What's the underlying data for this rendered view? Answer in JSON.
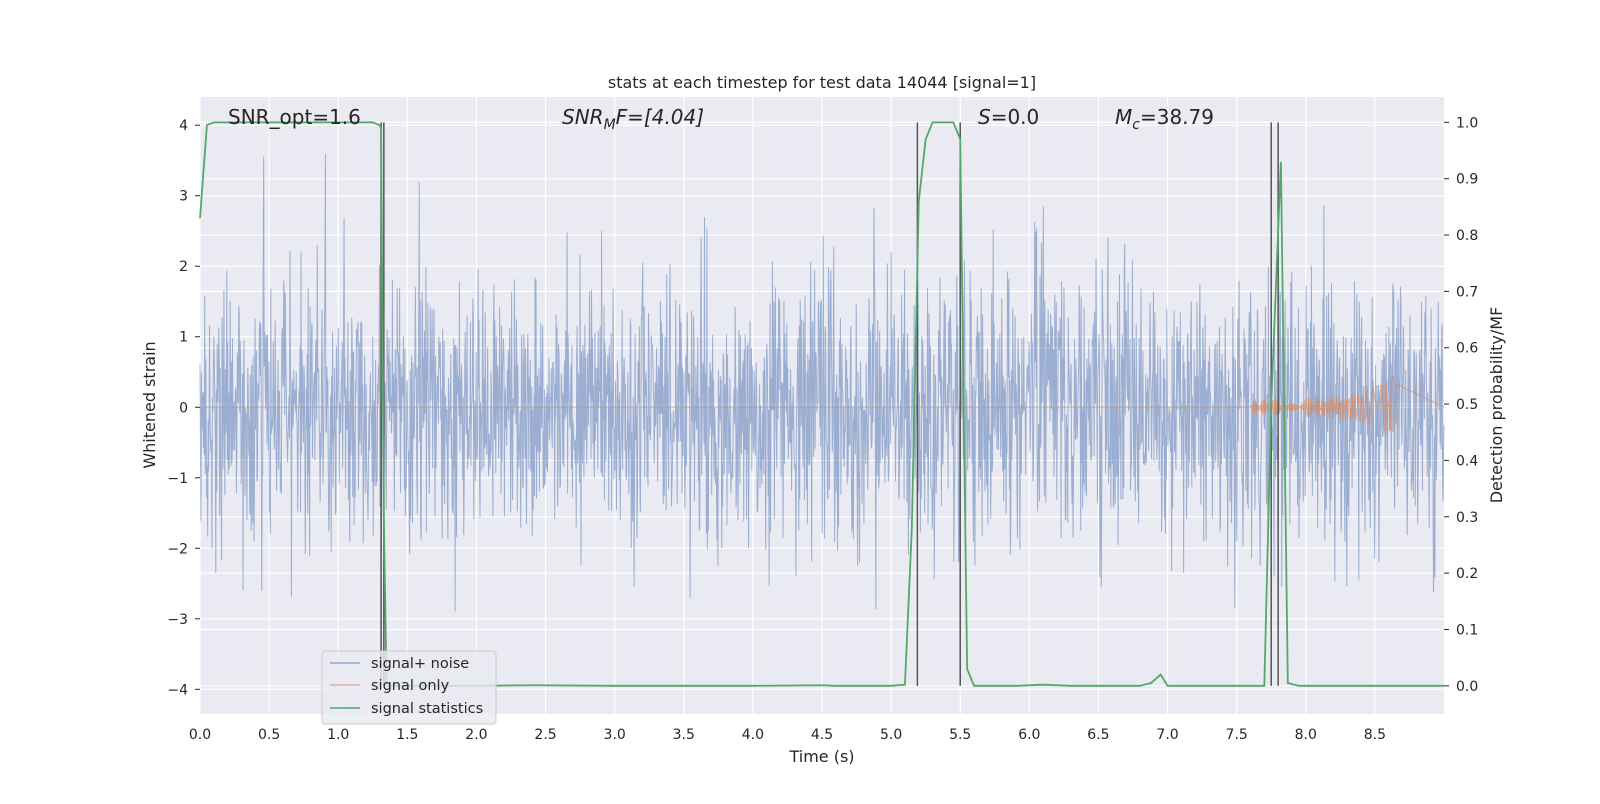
{
  "chart_data": {
    "type": "line",
    "title": "stats at each timestep for test data 14044 [signal=1]",
    "xlabel": "Time (s)",
    "ylabel": "Whitened strain",
    "ylabel_right": "Detection probability/MF",
    "xlim": [
      0.0,
      9.0
    ],
    "ylim": [
      -4.35,
      4.4
    ],
    "ylim_right": [
      -0.05,
      1.045
    ],
    "x_ticks": [
      "0.0",
      "0.5",
      "1.0",
      "1.5",
      "2.0",
      "2.5",
      "3.0",
      "3.5",
      "4.0",
      "4.5",
      "5.0",
      "5.5",
      "6.0",
      "6.5",
      "7.0",
      "7.5",
      "8.0",
      "8.5"
    ],
    "y_ticks_left": [
      "−4",
      "−3",
      "−2",
      "−1",
      "0",
      "1",
      "2",
      "3",
      "4"
    ],
    "y_ticks_right": [
      "0.0",
      "0.1",
      "0.2",
      "0.3",
      "0.4",
      "0.5",
      "0.6",
      "0.7",
      "0.8",
      "0.9",
      "1.0"
    ],
    "grid": true,
    "legend_position": "lower-left",
    "annotations": {
      "snr_opt": "SNR_opt=1.6",
      "snr_mf_base": "SNR",
      "snr_mf_sub": "M",
      "snr_mf_rest": "F=[4.04]",
      "s_var": "S",
      "s_rest": "=0.0",
      "mc_base": "M",
      "mc_sub": "c",
      "mc_rest": "=38.79"
    },
    "series": [
      {
        "name": "signal+ noise",
        "color": "#4c72b0",
        "axis": "left",
        "description_kind": "noise",
        "typical_amplitude": 1.55,
        "peak_amplitude": 3.9
      },
      {
        "name": "signal only",
        "color": "#dd8452",
        "axis": "left",
        "chirp_end_time": 8.65,
        "chirp_peak_amplitude": 0.45
      },
      {
        "name": "signal statistics",
        "color": "#55a868",
        "axis": "right",
        "x": [
          0.0,
          0.05,
          0.1,
          0.2,
          0.3,
          0.4,
          0.6,
          0.8,
          1.0,
          1.1,
          1.25,
          1.3,
          1.31,
          1.33,
          1.35,
          1.4,
          1.5,
          2.0,
          2.4,
          3.0,
          4.0,
          4.5,
          4.6,
          5.0,
          5.1,
          5.15,
          5.2,
          5.25,
          5.3,
          5.45,
          5.5,
          5.55,
          5.6,
          5.9,
          6.1,
          6.3,
          6.8,
          6.88,
          6.95,
          7.0,
          7.5,
          7.7,
          7.75,
          7.82,
          7.87,
          7.95,
          8.5,
          9.0
        ],
        "values": [
          0.83,
          0.995,
          1.0,
          1.0,
          1.0,
          1.0,
          1.0,
          1.0,
          1.0,
          1.0,
          1.0,
          0.995,
          0.99,
          0.3,
          0.0,
          0.0,
          0.0,
          0.0,
          0.001,
          0.0,
          0.0,
          0.001,
          0.0,
          0.0,
          0.002,
          0.28,
          0.86,
          0.97,
          1.0,
          1.0,
          0.97,
          0.03,
          0.0,
          0.0,
          0.002,
          0.0,
          0.0,
          0.005,
          0.02,
          0.0,
          0.0,
          0.0,
          0.5,
          0.93,
          0.005,
          0.0,
          0.0,
          0.0
        ]
      }
    ],
    "vertical_markers": [
      1.31,
      1.33,
      5.19,
      5.5,
      7.75,
      7.8
    ]
  }
}
